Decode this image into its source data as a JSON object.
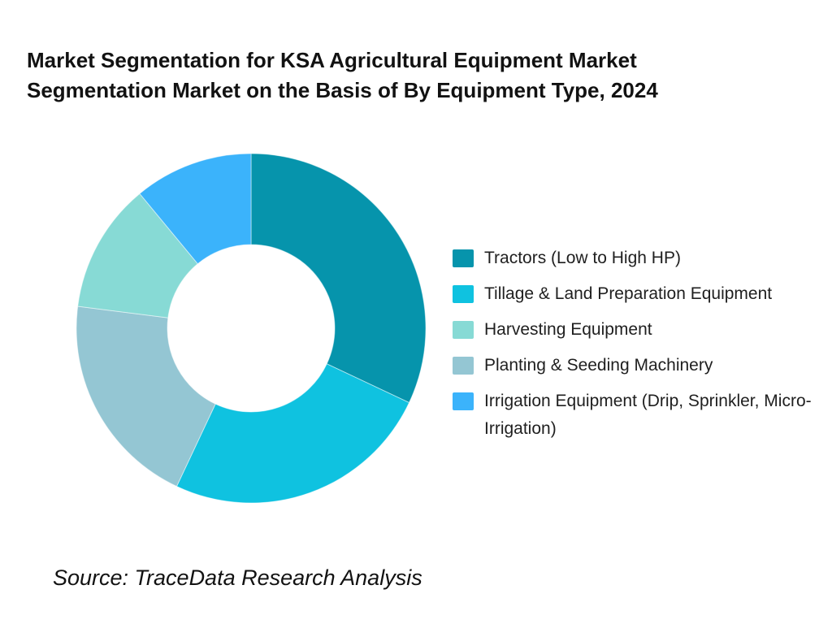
{
  "title": {
    "line1": "Market Segmentation for KSA Agricultural Equipment Market",
    "line2": "Segmentation Market on the Basis of By Equipment Type, 2024"
  },
  "source": {
    "text": "Source: TraceData Research Analysis"
  },
  "chart_data": {
    "type": "pie",
    "subtype": "donut",
    "title": "Market Segmentation for KSA Agricultural Equipment Market Segmentation Market on the Basis of By Equipment Type, 2024",
    "values_are_percent_estimates": true,
    "direction": "clockwise",
    "start_angle_deg_from_top": 0,
    "inner_radius_ratio": 0.48,
    "slices": [
      {
        "label": "Tractors (Low to High HP)",
        "value": 32,
        "color": "#0694ac"
      },
      {
        "label": "Tillage & Land Preparation Equipment",
        "value": 25,
        "color": "#0fc2e0"
      },
      {
        "label": "Planting & Seeding Machinery",
        "value": 20,
        "color": "#94c6d3"
      },
      {
        "label": "Harvesting Equipment",
        "value": 12,
        "color": "#87dad5"
      },
      {
        "label": "Irrigation Equipment (Drip, Sprinkler, Micro-Irrigation)",
        "value": 11,
        "color": "#3bb3fb"
      }
    ],
    "legend": {
      "position": "right",
      "items": [
        {
          "label": "Tractors (Low to High HP)",
          "color": "#0694ac"
        },
        {
          "label": "Tillage & Land Preparation Equipment",
          "color": "#0fc2e0"
        },
        {
          "label": "Harvesting Equipment",
          "color": "#87dad5"
        },
        {
          "label": "Planting & Seeding Machinery",
          "color": "#94c6d3"
        },
        {
          "label": "Irrigation Equipment (Drip, Sprinkler, Micro-Irrigation)",
          "color": "#3bb3fb"
        }
      ]
    },
    "slice_separator_color": "rgba(255,255,255,0.5)"
  }
}
